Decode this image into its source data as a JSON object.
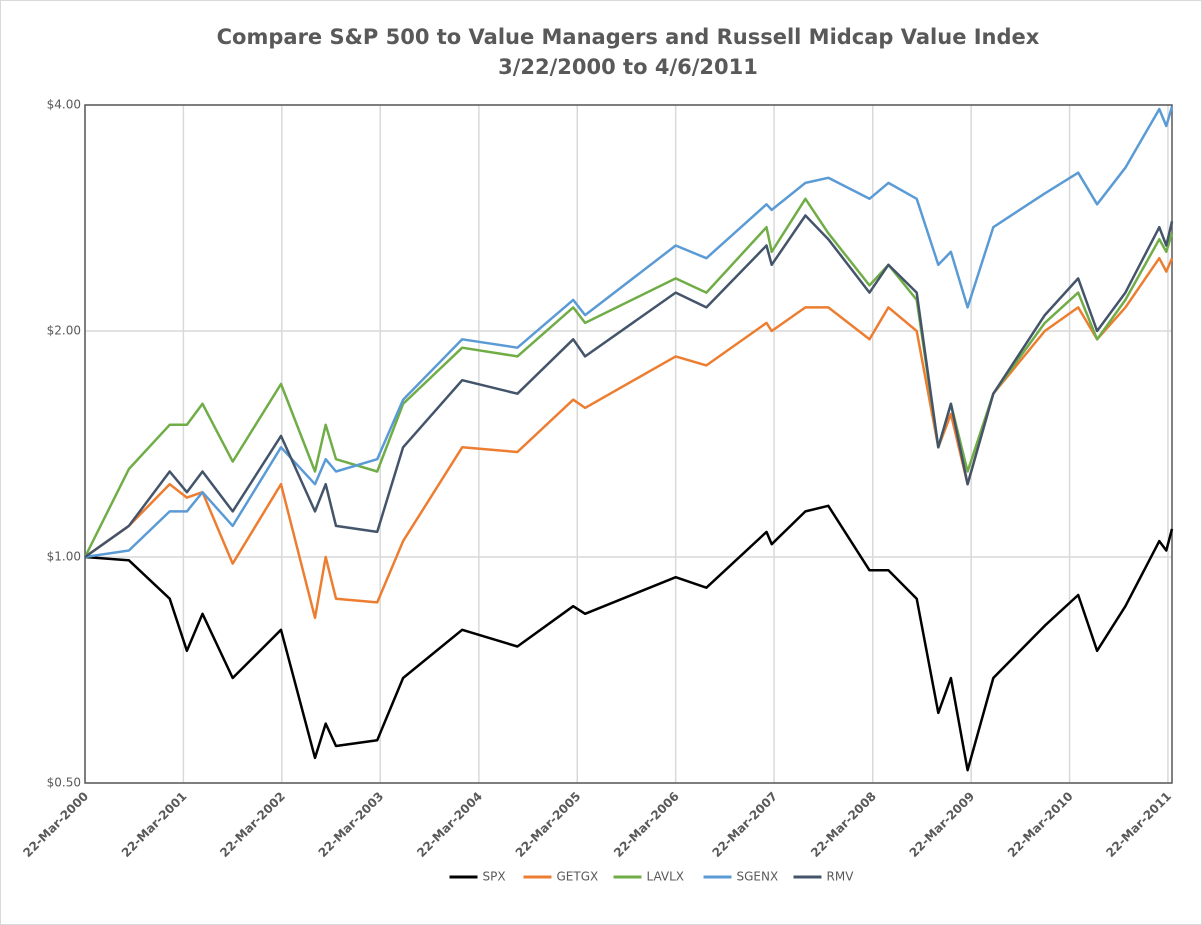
{
  "chart_data": {
    "type": "line",
    "title": "Compare S&P 500 to Value Managers and Russell Midcap Value Index",
    "subtitle": "3/22/2000 to 4/6/2011",
    "log_y": true,
    "grid": true,
    "legend": "bottom",
    "x": [
      "2000-03-22",
      "2000-09-01",
      "2001-01-30",
      "2001-04-04",
      "2001-06-01",
      "2001-09-21",
      "2002-03-19",
      "2002-07-23",
      "2002-09-01",
      "2002-10-09",
      "2003-03-11",
      "2003-06-15",
      "2004-01-20",
      "2004-08-12",
      "2005-03-07",
      "2005-04-20",
      "2006-03-22",
      "2006-07-14",
      "2007-02-22",
      "2007-03-13",
      "2007-07-16",
      "2007-10-09",
      "2008-03-10",
      "2008-05-19",
      "2008-09-01",
      "2008-11-20",
      "2009-01-06",
      "2009-03-09",
      "2009-06-12",
      "2009-12-20",
      "2010-04-23",
      "2010-07-02",
      "2010-10-15",
      "2011-02-18",
      "2011-03-16",
      "2011-04-06"
    ],
    "xlim": [
      "2000-03-22",
      "2011-04-06"
    ],
    "xticks": [
      {
        "value": "2000-03-22",
        "label": "22-Mar-2000"
      },
      {
        "value": "2001-03-22",
        "label": "22-Mar-2001"
      },
      {
        "value": "2002-03-22",
        "label": "22-Mar-2002"
      },
      {
        "value": "2003-03-22",
        "label": "22-Mar-2003"
      },
      {
        "value": "2004-03-22",
        "label": "22-Mar-2004"
      },
      {
        "value": "2005-03-22",
        "label": "22-Mar-2005"
      },
      {
        "value": "2006-03-22",
        "label": "22-Mar-2006"
      },
      {
        "value": "2007-03-22",
        "label": "22-Mar-2007"
      },
      {
        "value": "2008-03-22",
        "label": "22-Mar-2008"
      },
      {
        "value": "2009-03-22",
        "label": "22-Mar-2009"
      },
      {
        "value": "2010-03-22",
        "label": "22-Mar-2010"
      },
      {
        "value": "2011-03-22",
        "label": "22-Mar-2011"
      }
    ],
    "ylim": [
      0.5,
      4
    ],
    "yticks": [
      {
        "value": 0.5,
        "label": "$0.50"
      },
      {
        "value": 1,
        "label": "$1.00"
      },
      {
        "value": 2,
        "label": "$2.00"
      },
      {
        "value": 4,
        "label": "$4.00"
      }
    ],
    "series": [
      {
        "name": "SPX",
        "color": "#000000",
        "values": [
          1.0,
          0.99,
          0.88,
          0.75,
          0.84,
          0.69,
          0.8,
          0.54,
          0.6,
          0.56,
          0.57,
          0.69,
          0.8,
          0.76,
          0.86,
          0.84,
          0.94,
          0.91,
          1.08,
          1.04,
          1.15,
          1.17,
          0.96,
          0.96,
          0.88,
          0.62,
          0.69,
          0.52,
          0.69,
          0.81,
          0.89,
          0.75,
          0.86,
          1.05,
          1.02,
          1.09
        ]
      },
      {
        "name": "GETGX",
        "color": "#ed7d31",
        "values": [
          1.0,
          1.1,
          1.25,
          1.2,
          1.22,
          0.98,
          1.25,
          0.83,
          1.0,
          0.88,
          0.87,
          1.05,
          1.4,
          1.38,
          1.62,
          1.58,
          1.85,
          1.8,
          2.05,
          2.0,
          2.15,
          2.15,
          1.95,
          2.15,
          2.0,
          1.4,
          1.55,
          1.25,
          1.65,
          2.0,
          2.15,
          1.95,
          2.15,
          2.5,
          2.4,
          2.5
        ]
      },
      {
        "name": "LAVLX",
        "color": "#70ad47",
        "values": [
          1.0,
          1.31,
          1.5,
          1.5,
          1.6,
          1.34,
          1.7,
          1.3,
          1.5,
          1.35,
          1.3,
          1.6,
          1.9,
          1.85,
          2.15,
          2.05,
          2.35,
          2.25,
          2.75,
          2.55,
          3.0,
          2.7,
          2.3,
          2.45,
          2.2,
          1.4,
          1.6,
          1.3,
          1.65,
          2.05,
          2.25,
          1.95,
          2.2,
          2.65,
          2.55,
          2.7
        ]
      },
      {
        "name": "SGENX",
        "color": "#5b9bd5",
        "values": [
          1.0,
          1.02,
          1.15,
          1.15,
          1.22,
          1.1,
          1.4,
          1.25,
          1.35,
          1.3,
          1.35,
          1.62,
          1.95,
          1.9,
          2.2,
          2.1,
          2.6,
          2.5,
          2.95,
          2.9,
          3.15,
          3.2,
          3.0,
          3.15,
          3.0,
          2.45,
          2.55,
          2.15,
          2.75,
          3.05,
          3.25,
          2.95,
          3.3,
          3.95,
          3.75,
          3.98
        ]
      },
      {
        "name": "RMV",
        "color": "#44546a",
        "values": [
          1.0,
          1.1,
          1.3,
          1.22,
          1.3,
          1.15,
          1.45,
          1.15,
          1.25,
          1.1,
          1.08,
          1.4,
          1.72,
          1.65,
          1.95,
          1.85,
          2.25,
          2.15,
          2.6,
          2.45,
          2.85,
          2.65,
          2.25,
          2.45,
          2.25,
          1.4,
          1.6,
          1.25,
          1.65,
          2.1,
          2.35,
          2.0,
          2.25,
          2.75,
          2.6,
          2.8
        ]
      }
    ]
  }
}
